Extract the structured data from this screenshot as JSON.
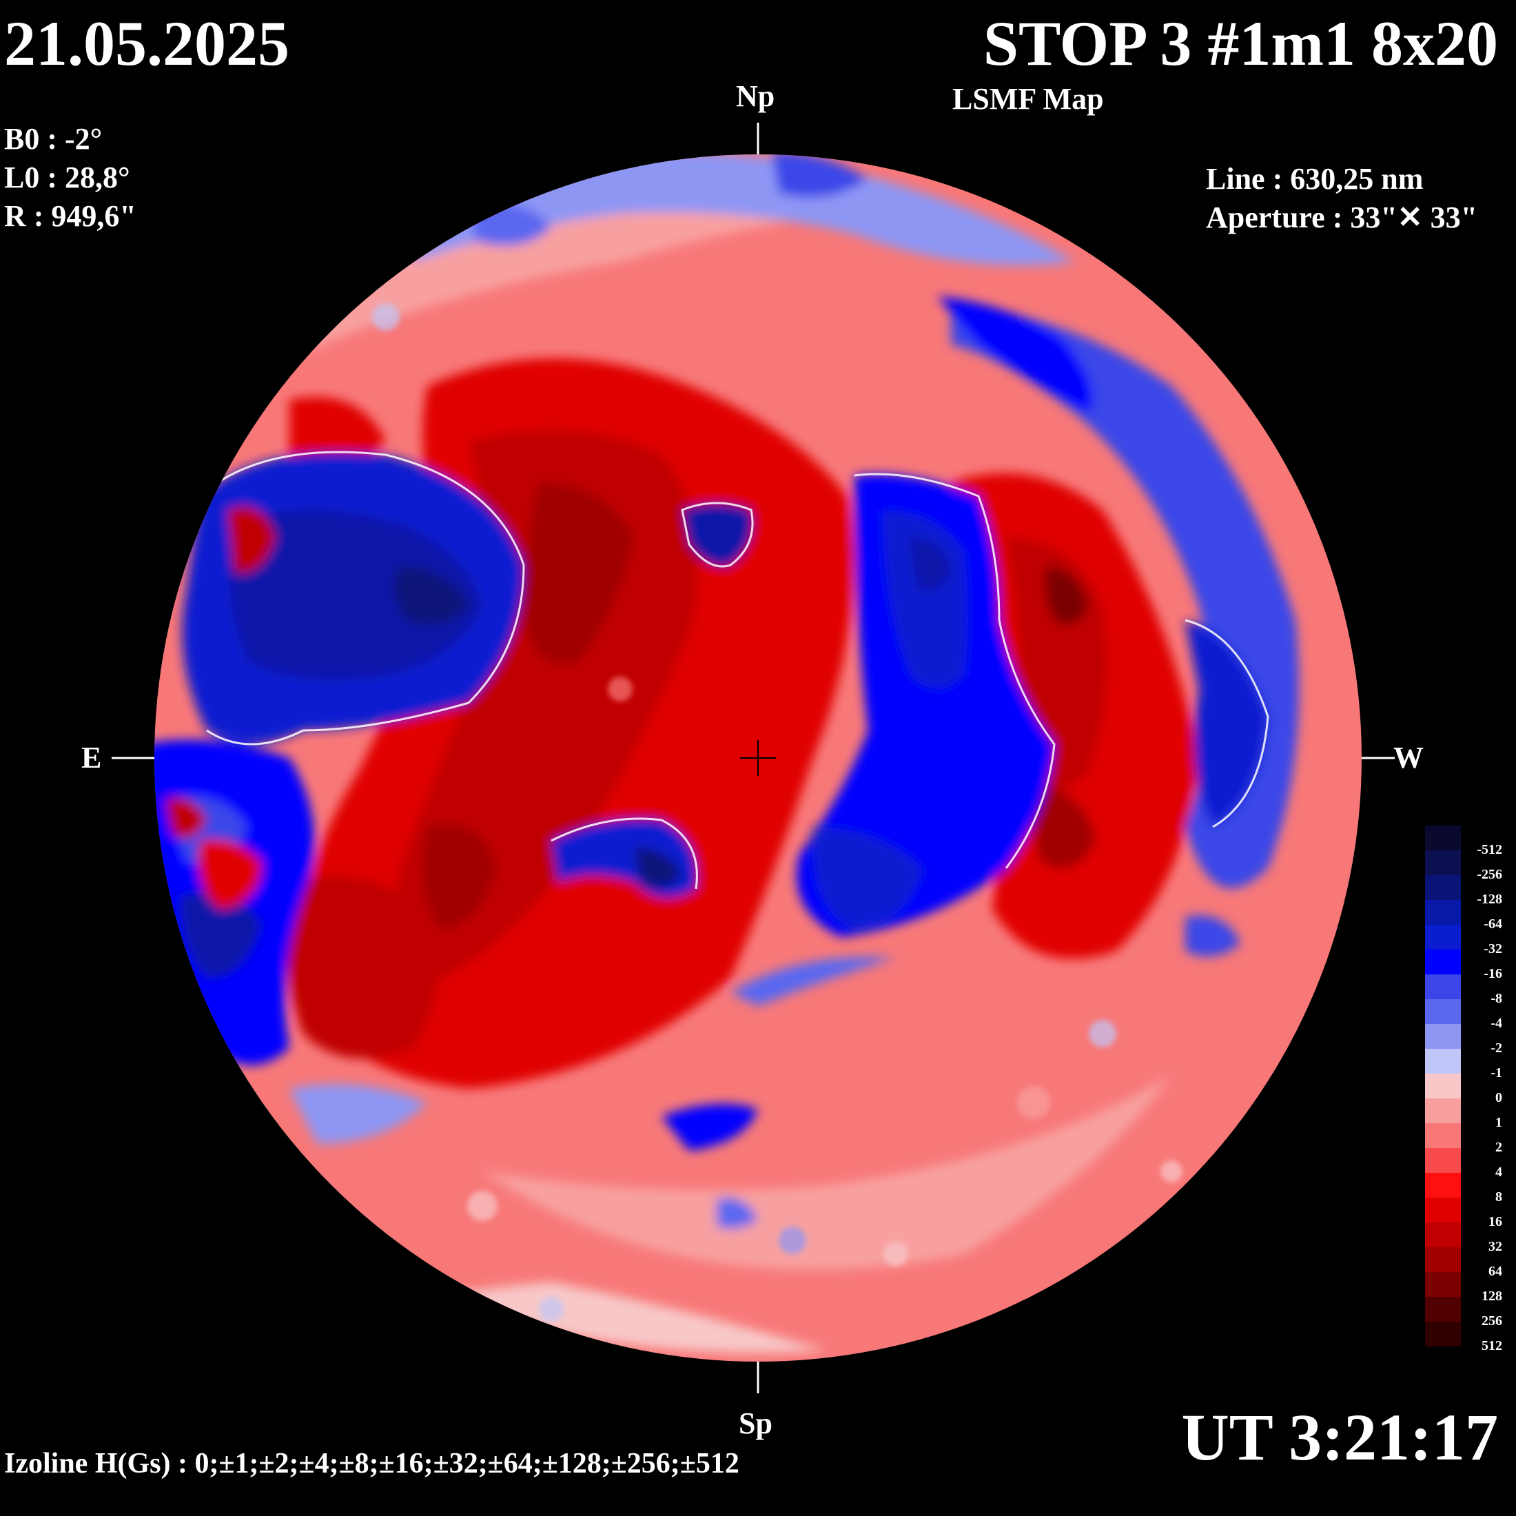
{
  "header": {
    "date": "21.05.2025",
    "title": "STOP 3 #1m1 8x20",
    "subtitle": "LSMF  Map"
  },
  "params": {
    "b0": "B0 : -2°",
    "l0": "L0 : 28,8°",
    "radius": "R  : 949,6\""
  },
  "spectral": {
    "line": "Line :  630,25 nm",
    "aperture": "Aperture : 33\"✕ 33\""
  },
  "directions": {
    "north": "Np",
    "south": "Sp",
    "east": "E",
    "west": "W"
  },
  "time": "UT 3:21:17",
  "isolines": "Izoline H(Gs) : 0;±1;±2;±4;±8;±16;±32;±64;±128;±256;±512",
  "colorbar": {
    "levels": [
      {
        "label": "-512",
        "color": "#0a0a30"
      },
      {
        "label": "-256",
        "color": "#0c1050"
      },
      {
        "label": "-128",
        "color": "#0a1478"
      },
      {
        "label": "-64",
        "color": "#0818a8"
      },
      {
        "label": "-32",
        "color": "#0a1ed0"
      },
      {
        "label": "-16",
        "color": "#0000ff"
      },
      {
        "label": "-8",
        "color": "#3a46e8"
      },
      {
        "label": "-4",
        "color": "#5a68f0"
      },
      {
        "label": "-2",
        "color": "#8e96f4"
      },
      {
        "label": "-1",
        "color": "#c0c6f8"
      },
      {
        "label": "0",
        "color": "#f8c8c8"
      },
      {
        "label": "1",
        "color": "#f8a0a0"
      },
      {
        "label": "2",
        "color": "#f87878"
      },
      {
        "label": "4",
        "color": "#f84a4a"
      },
      {
        "label": "8",
        "color": "#ff1010"
      },
      {
        "label": "16",
        "color": "#e00000"
      },
      {
        "label": "32",
        "color": "#c00000"
      },
      {
        "label": "64",
        "color": "#a00000"
      },
      {
        "label": "128",
        "color": "#7a0000"
      },
      {
        "label": "256",
        "color": "#500000"
      },
      {
        "label": "512",
        "color": "#300000"
      }
    ]
  }
}
